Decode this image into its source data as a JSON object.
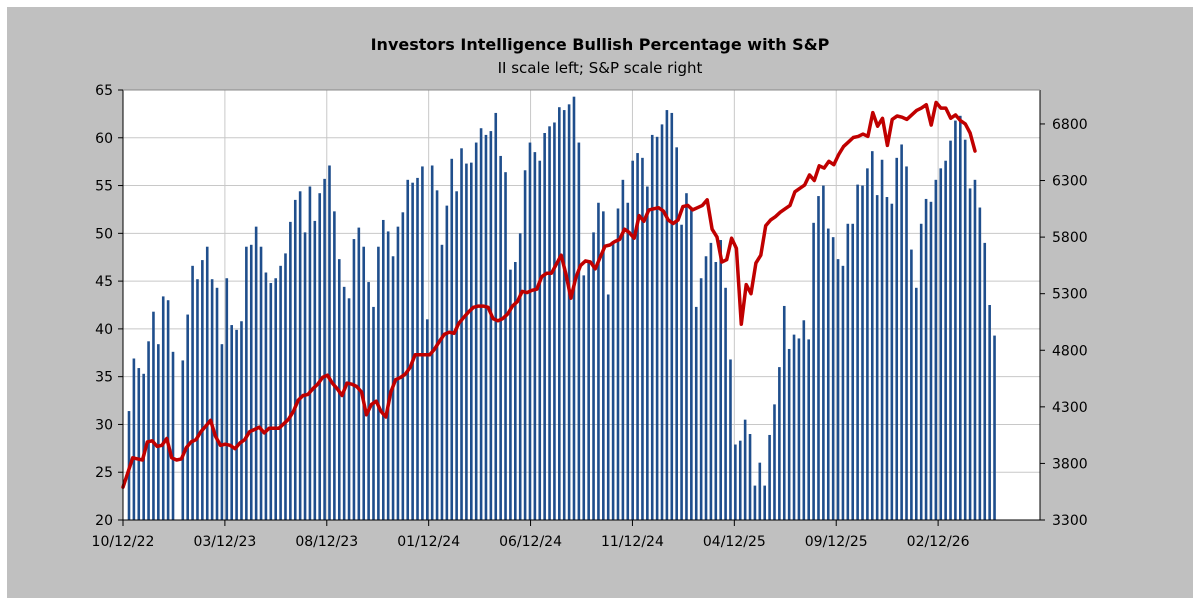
{
  "chart_data": {
    "type": "bar+line",
    "title": "Investors Intelligence Bullish Percentage with S&P",
    "subtitle": "II scale left; S&P scale right",
    "colors": {
      "outer_background": "#c0c0c0",
      "plot_background": "#ffffff",
      "bars": "#1f4e8c",
      "line": "#c00000",
      "grid": "#c8c8c8"
    },
    "y_left": {
      "min": 20,
      "max": 65,
      "ticks": [
        20,
        25,
        30,
        35,
        40,
        45,
        50,
        55,
        60,
        65
      ]
    },
    "y_right": {
      "min": 3300,
      "max": 7100,
      "ticks": [
        3300,
        3800,
        4300,
        4800,
        5300,
        5800,
        6300,
        6800
      ]
    },
    "x_tick_labels": [
      "10/12/22",
      "03/12/23",
      "08/12/23",
      "01/12/24",
      "06/12/24",
      "11/12/24",
      "04/12/25",
      "09/12/25",
      "02/12/26"
    ],
    "x_start": "10/12/22",
    "grid": true,
    "series": [
      {
        "kind": "bar",
        "axis": "left",
        "values": [
          31.4,
          36.9,
          35.9,
          35.3,
          38.7,
          41.8,
          38.4,
          43.4,
          43.0,
          37.6,
          20.0,
          36.7,
          41.5,
          46.6,
          45.2,
          47.2,
          48.6,
          45.2,
          44.3,
          38.4,
          45.3,
          40.4,
          39.9,
          40.8,
          48.6,
          48.8,
          50.7,
          48.6,
          45.9,
          44.8,
          45.3,
          46.6,
          47.9,
          51.2,
          53.5,
          54.4,
          50.1,
          54.9,
          51.3,
          54.2,
          55.7,
          57.1,
          52.3,
          47.3,
          44.4,
          43.2,
          49.4,
          50.6,
          48.6,
          44.9,
          42.3,
          48.6,
          51.4,
          50.2,
          47.6,
          50.7,
          52.2,
          55.6,
          55.3,
          55.8,
          57.0,
          41.0,
          57.1,
          54.5,
          48.8,
          52.9,
          57.8,
          54.4,
          58.9,
          57.3,
          57.4,
          59.5,
          61.0,
          60.3,
          60.7,
          62.6,
          58.1,
          56.4,
          46.2,
          47.0,
          50.0,
          56.6,
          59.5,
          58.5,
          57.6,
          60.5,
          61.2,
          61.6,
          63.2,
          62.9,
          63.5,
          64.3,
          59.5,
          45.6,
          47.0,
          50.1,
          53.2,
          52.3,
          43.6,
          49.2,
          52.6,
          55.6,
          53.2,
          57.6,
          58.4,
          57.9,
          54.9,
          60.3,
          60.1,
          61.4,
          62.9,
          62.6,
          59.0,
          50.9,
          54.2,
          52.5,
          42.3,
          45.3,
          47.6,
          49.0,
          47.0,
          49.3,
          44.3,
          36.8,
          27.9,
          28.3,
          30.5,
          29.0,
          23.6,
          26.0,
          23.6,
          28.9,
          32.1,
          36.0,
          42.4,
          37.9,
          39.4,
          39.0,
          40.9,
          38.9,
          51.1,
          53.9,
          55.0,
          50.5,
          49.6,
          47.3,
          46.6,
          51.0,
          51.0,
          55.1,
          55.0,
          56.8,
          58.6,
          54.0,
          57.7,
          53.8,
          53.1,
          57.9,
          59.3,
          57.0,
          48.3,
          44.3,
          51.0,
          53.6,
          53.3,
          55.6,
          56.8,
          57.6,
          59.7,
          61.8,
          62.3,
          59.8,
          54.7,
          55.6,
          52.7,
          49.0,
          42.5,
          39.3
        ]
      },
      {
        "kind": "line",
        "axis": "right",
        "values": [
          3590,
          3720,
          3850,
          3840,
          3830,
          3990,
          4000,
          3950,
          3960,
          4020,
          3850,
          3830,
          3840,
          3940,
          3990,
          4010,
          4080,
          4130,
          4180,
          4040,
          3960,
          3970,
          3960,
          3930,
          3980,
          4010,
          4080,
          4100,
          4120,
          4070,
          4110,
          4110,
          4110,
          4150,
          4190,
          4260,
          4360,
          4400,
          4410,
          4460,
          4500,
          4560,
          4580,
          4510,
          4460,
          4400,
          4510,
          4500,
          4480,
          4430,
          4230,
          4320,
          4350,
          4260,
          4210,
          4430,
          4540,
          4560,
          4590,
          4650,
          4760,
          4760,
          4760,
          4760,
          4810,
          4880,
          4940,
          4960,
          4950,
          5040,
          5090,
          5140,
          5180,
          5190,
          5190,
          5180,
          5080,
          5060,
          5080,
          5120,
          5190,
          5230,
          5320,
          5310,
          5330,
          5340,
          5450,
          5480,
          5480,
          5560,
          5640,
          5470,
          5260,
          5440,
          5550,
          5590,
          5580,
          5520,
          5620,
          5720,
          5730,
          5760,
          5780,
          5870,
          5840,
          5790,
          5990,
          5940,
          6040,
          6050,
          6060,
          6030,
          5950,
          5920,
          5950,
          6070,
          6080,
          6040,
          6060,
          6080,
          6130,
          5870,
          5800,
          5580,
          5600,
          5790,
          5700,
          5030,
          5380,
          5300,
          5570,
          5640,
          5900,
          5950,
          5980,
          6020,
          6050,
          6080,
          6200,
          6230,
          6260,
          6350,
          6300,
          6430,
          6410,
          6470,
          6440,
          6530,
          6600,
          6640,
          6680,
          6690,
          6710,
          6690,
          6900,
          6780,
          6850,
          6610,
          6840,
          6870,
          6860,
          6840,
          6880,
          6920,
          6940,
          6970,
          6790,
          6990,
          6940,
          6940,
          6850,
          6880,
          6830,
          6800,
          6720,
          6560
        ]
      }
    ]
  }
}
